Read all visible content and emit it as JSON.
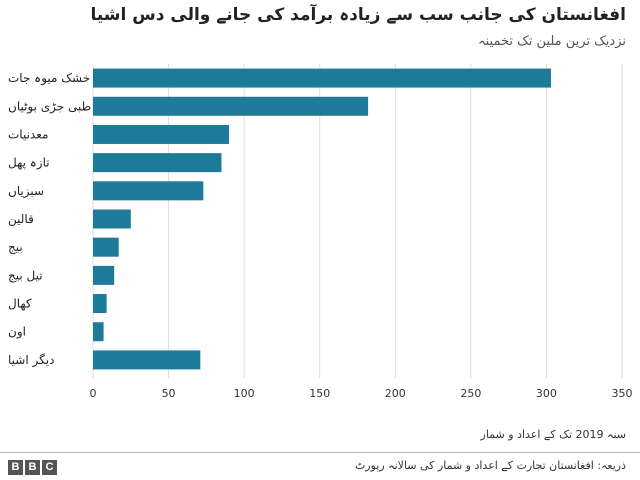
{
  "header": {
    "title": "افغانستان کی جانب سب سے زیادہ برآمد کی جانے والی دس اشیا",
    "subtitle": "نزدیک ترین ملین تک تخمینہ"
  },
  "chart_data": {
    "type": "bar",
    "orientation": "horizontal",
    "categories": [
      "خشک میوہ جات",
      "طبی جڑی بوٹیاں",
      "معدنیات",
      "تازہ پھل",
      "سبزیاں",
      "قالین",
      "بیج",
      "تیل بیج",
      "کھال",
      "اون",
      "دیگر اشیا"
    ],
    "values": [
      303,
      182,
      90,
      85,
      73,
      25,
      17,
      14,
      9,
      7,
      71
    ],
    "xlim": [
      0,
      350
    ],
    "xticks": [
      0,
      50,
      100,
      150,
      200,
      250,
      300,
      350
    ],
    "grid": true,
    "bar_color": "#1d7a99"
  },
  "footer": {
    "note": "سنہ 2019 تک کے اعداد و شمار",
    "source": "ذریعہ: افغانستان تجارت کے اعداد و شمار کی سالانہ رپورٹ",
    "logo": [
      "B",
      "B",
      "C"
    ]
  }
}
